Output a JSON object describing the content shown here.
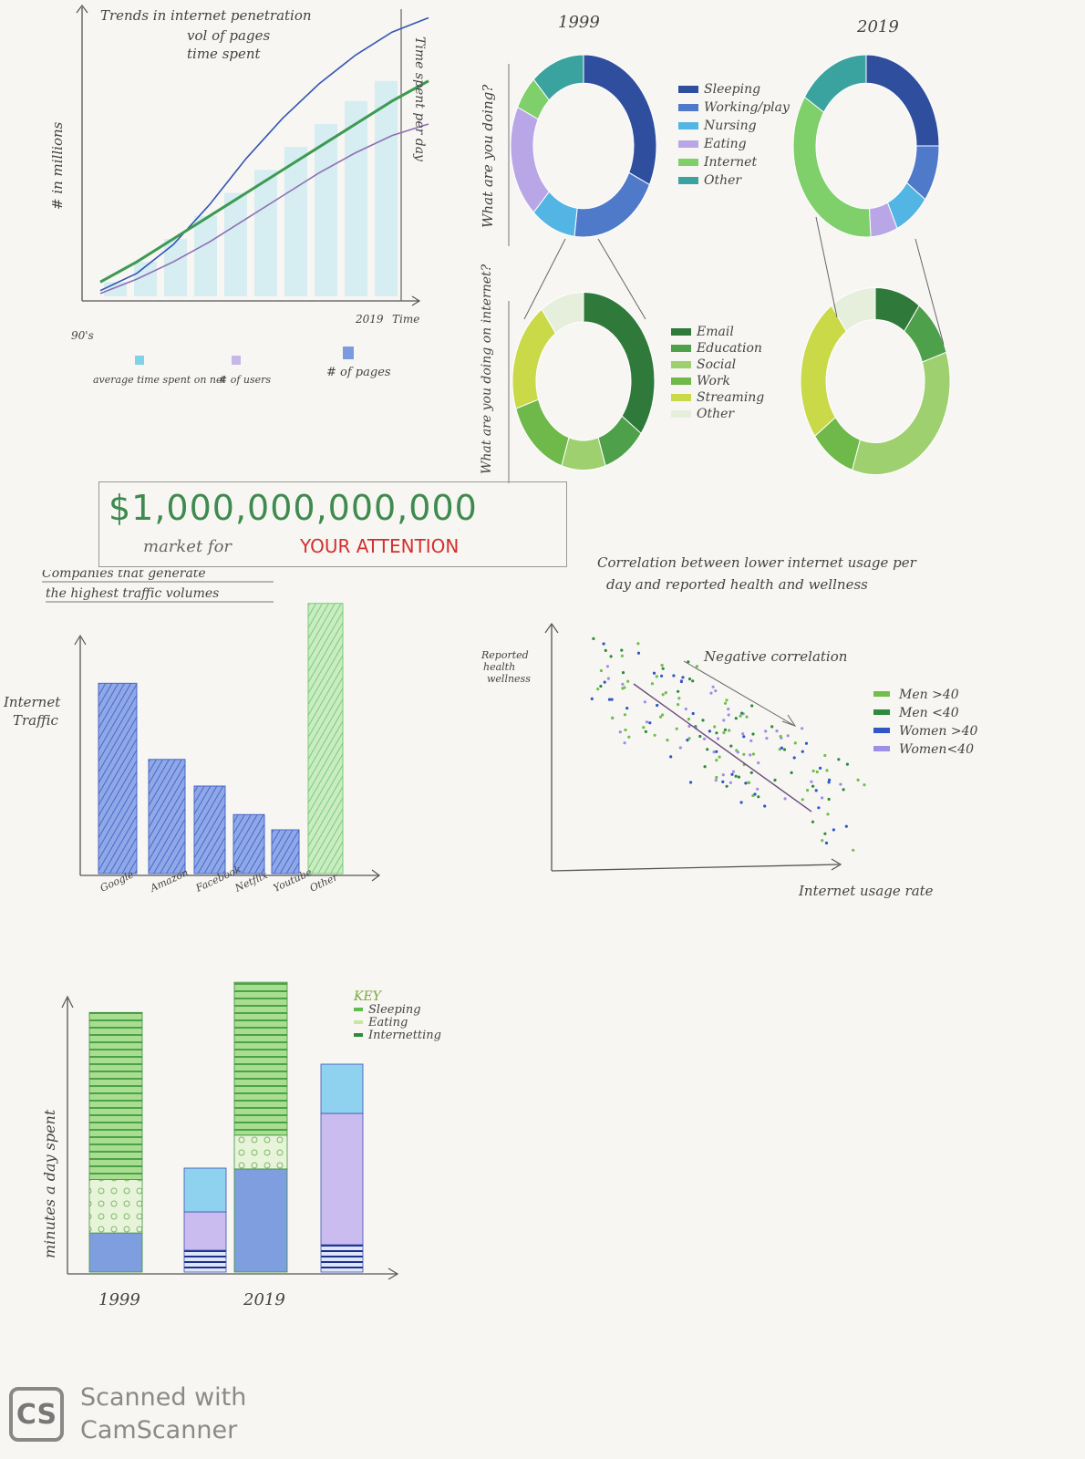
{
  "chart_data": [
    {
      "type": "line",
      "title": "Trends in internet penetration\nvol of pages\ntime spent",
      "xlabel": "Time",
      "ylabel": "# in millions",
      "y2label": "Time spent per day",
      "x_tick_labels": [
        "90's",
        "2019"
      ],
      "series": [
        {
          "name": "# of pages",
          "values": [
            2,
            8,
            18,
            32,
            48,
            62,
            74,
            84,
            92,
            97
          ]
        },
        {
          "name": "# of users",
          "values": [
            1,
            6,
            12,
            19,
            27,
            35,
            43,
            50,
            56,
            60
          ]
        },
        {
          "name": "average time spent on net",
          "values": [
            5,
            12,
            20,
            28,
            36,
            44,
            52,
            60,
            68,
            75
          ]
        }
      ],
      "legend": [
        "average time spent on net",
        "# of users",
        "# of pages"
      ]
    },
    {
      "type": "pie",
      "title": "What are you doing?",
      "columns": [
        "1999",
        "2019"
      ],
      "categories": [
        "Sleeping",
        "Working/play",
        "Nursing",
        "Eating",
        "Internet",
        "Other"
      ],
      "series": [
        {
          "name": "1999",
          "values": [
            32,
            20,
            10,
            20,
            6,
            12
          ]
        },
        {
          "name": "2019",
          "values": [
            25,
            10,
            8,
            6,
            35,
            16
          ]
        }
      ]
    },
    {
      "type": "pie",
      "title": "What are you doing on internet?",
      "categories": [
        "Email",
        "Education",
        "Social",
        "Work",
        "Streaming",
        "Other"
      ],
      "series": [
        {
          "name": "1999",
          "values": [
            35,
            10,
            10,
            15,
            20,
            10
          ]
        },
        {
          "name": "2019",
          "values": [
            10,
            10,
            35,
            10,
            25,
            10
          ]
        }
      ]
    },
    {
      "type": "text",
      "amount": "$1,000,000,000,000",
      "text": "market for",
      "highlight": "YOUR ATTENTION"
    },
    {
      "type": "bar",
      "title": "Companies that generate the highest traffic volumes",
      "ylabel": "Internet Traffic",
      "categories": [
        "Google",
        "Amazon",
        "Facebook",
        "Netflix",
        "Youtube",
        "Other"
      ],
      "values": [
        100,
        60,
        46,
        31,
        23,
        142
      ],
      "ylim": [
        0,
        150
      ]
    },
    {
      "type": "scatter",
      "title": "Correlation between lower internet usage per day and reported health and wellness",
      "xlabel": "Internet usage rate",
      "ylabel": "Reported health wellness",
      "annotation": "Negative correlation",
      "legend": [
        "Men >40",
        "Men <40",
        "Women >40",
        "Women<40"
      ],
      "colors": [
        "#6fbf4a",
        "#2e8b3d",
        "#2f57c8",
        "#9c8fe6"
      ]
    },
    {
      "type": "bar",
      "stacked": true,
      "ylabel": "minutes a day spent",
      "categories": [
        "1999",
        "2019"
      ],
      "key_title": "KEY",
      "key": [
        "Sleeping",
        "Eating",
        "Internetting"
      ],
      "series": [
        {
          "name": "Sleeping",
          "values": [
            470,
            430
          ]
        },
        {
          "name": "Eating",
          "values": [
            150,
            95
          ]
        },
        {
          "name": "Internetting",
          "values": [
            110,
            290
          ]
        }
      ],
      "breakdown_values": [
        [
          20,
          35,
          40
        ],
        [
          25,
          120,
          45
        ]
      ]
    }
  ],
  "footer": {
    "logo": "CS",
    "line1": "Scanned with",
    "line2": "CamScanner"
  }
}
